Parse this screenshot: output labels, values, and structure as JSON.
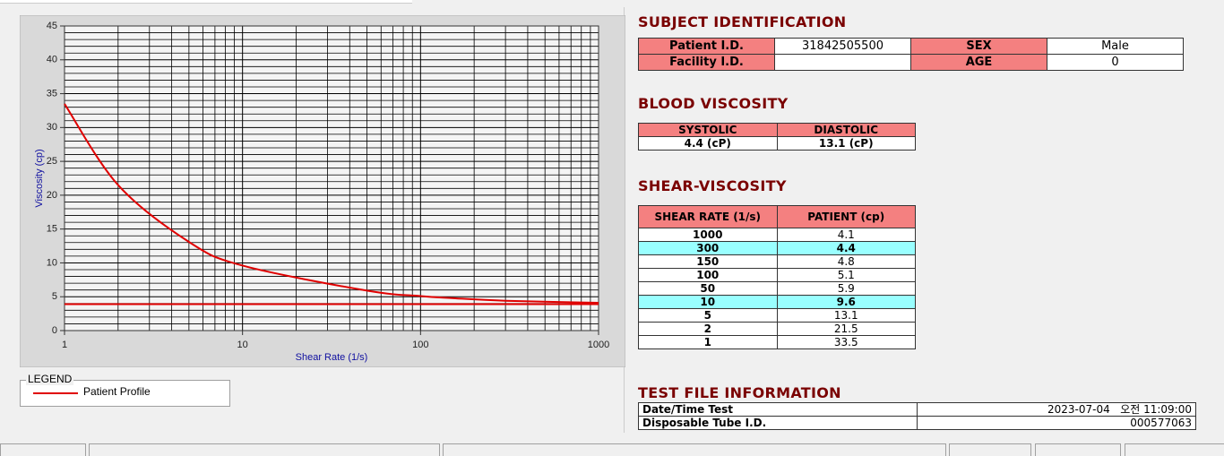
{
  "chart_data": {
    "type": "line",
    "xlabel": "Shear Rate (1/s)",
    "ylabel": "Viscosity (cp)",
    "xscale": "log",
    "xlim": [
      1,
      1000
    ],
    "ylim": [
      0,
      45
    ],
    "xticks": [
      1,
      10,
      100,
      1000
    ],
    "yticks": [
      0,
      5,
      10,
      15,
      20,
      25,
      30,
      35,
      40,
      45
    ],
    "x_minor_ticks": [
      2,
      3,
      4,
      5,
      6,
      7,
      8,
      9,
      20,
      30,
      40,
      50,
      60,
      70,
      80,
      90,
      200,
      300,
      400,
      500,
      600,
      700,
      800,
      900
    ],
    "y_minor_ticks": [
      1,
      2,
      3,
      4,
      6,
      7,
      8,
      9,
      11,
      12,
      13,
      14,
      16,
      17,
      18,
      19,
      21,
      22,
      23,
      24,
      26,
      27,
      28,
      29,
      31,
      32,
      33,
      34,
      36,
      37,
      38,
      39,
      41,
      42,
      43,
      44
    ],
    "grid": true,
    "legend_title": "LEGEND",
    "series": [
      {
        "name": "Patient Profile",
        "color": "#e00000",
        "x": [
          1,
          2,
          5,
          10,
          50,
          100,
          150,
          300,
          1000
        ],
        "values": [
          33.5,
          21.5,
          13.1,
          9.6,
          5.9,
          5.1,
          4.8,
          4.4,
          4.1
        ]
      },
      {
        "color": "#e00000",
        "x": [
          1,
          1000
        ],
        "values": [
          3.9,
          3.9
        ]
      }
    ]
  },
  "subject_identification": {
    "title": "SUBJECT IDENTIFICATION",
    "rows": [
      [
        "Patient I.D.",
        "31842505500",
        "SEX",
        "Male"
      ],
      [
        "Facility I.D.",
        null,
        "AGE",
        0
      ]
    ]
  },
  "blood_viscosity": {
    "title": "BLOOD VISCOSITY",
    "headers": [
      "SYSTOLIC",
      "DIASTOLIC"
    ],
    "values": [
      "4.4 (cP)",
      "13.1 (cP)"
    ]
  },
  "shear_viscosity": {
    "title": "SHEAR-VISCOSITY",
    "headers": [
      "SHEAR RATE (1/s)",
      "PATIENT (cp)"
    ],
    "rows": [
      [
        1000,
        4.1
      ],
      [
        300,
        4.4
      ],
      [
        150,
        4.8
      ],
      [
        100,
        5.1
      ],
      [
        50,
        5.9
      ],
      [
        10,
        9.6
      ],
      [
        5,
        13.1
      ],
      [
        2,
        21.5
      ],
      [
        1,
        33.5
      ]
    ]
  },
  "test_file_information": {
    "title": "TEST FILE INFORMATION",
    "rows": [
      [
        "Date/Time Test",
        "2023-07-04   오전 11:09:00"
      ],
      [
        "Disposable Tube I.D.",
        "000577063"
      ]
    ]
  }
}
